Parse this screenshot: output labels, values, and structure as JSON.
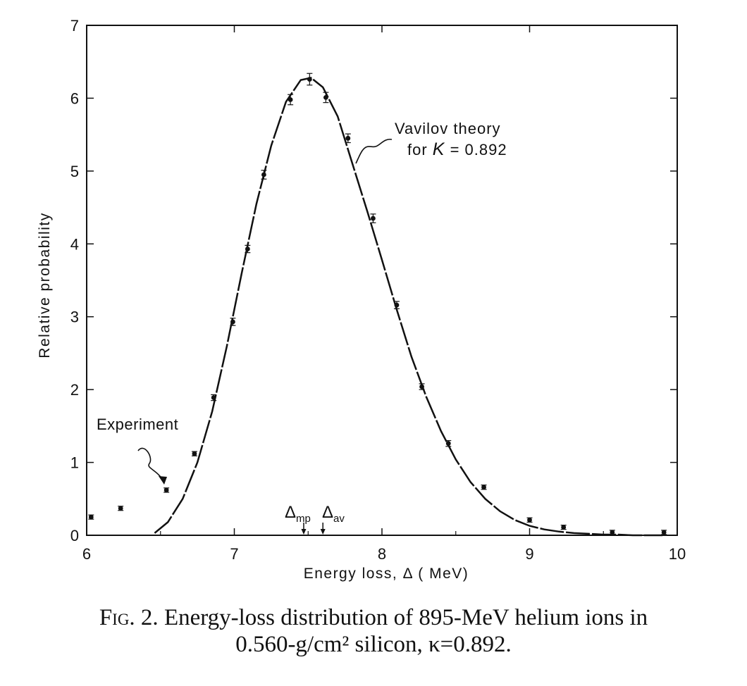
{
  "chart_data": {
    "type": "scatter",
    "title": "",
    "xlabel": "Energy loss, Δ ( MeV)",
    "ylabel": "Relative probability",
    "xlim": [
      6,
      10
    ],
    "ylim": [
      0,
      7
    ],
    "x_ticks": [
      "6",
      "7",
      "8",
      "9",
      "10"
    ],
    "y_ticks": [
      "0",
      "1",
      "2",
      "3",
      "4",
      "5",
      "6",
      "7"
    ],
    "series": [
      {
        "name": "Experiment",
        "kind": "points_with_error_bars",
        "x": [
          6.03,
          6.23,
          6.54,
          6.73,
          6.86,
          6.99,
          7.09,
          7.2,
          7.38,
          7.51,
          7.62,
          7.77,
          7.94,
          8.1,
          8.27,
          8.45,
          8.69,
          9.0,
          9.23,
          9.56,
          9.91
        ],
        "y": [
          0.25,
          0.37,
          0.62,
          1.12,
          1.89,
          2.93,
          3.93,
          4.95,
          5.98,
          6.26,
          6.01,
          5.45,
          4.35,
          3.16,
          2.04,
          1.26,
          0.66,
          0.21,
          0.11,
          0.04,
          0.04
        ],
        "err": [
          0.02,
          0.02,
          0.03,
          0.03,
          0.04,
          0.05,
          0.05,
          0.06,
          0.07,
          0.08,
          0.07,
          0.06,
          0.06,
          0.05,
          0.04,
          0.04,
          0.03,
          0.03,
          0.02,
          0.02,
          0.02
        ]
      },
      {
        "name": "Vavilov theory for K = 0.892",
        "kind": "line",
        "x": [
          6.46,
          6.55,
          6.65,
          6.75,
          6.85,
          6.95,
          7.05,
          7.15,
          7.25,
          7.35,
          7.45,
          7.52,
          7.6,
          7.7,
          7.8,
          7.9,
          8.0,
          8.1,
          8.2,
          8.3,
          8.4,
          8.5,
          8.6,
          8.7,
          8.8,
          8.9,
          9.0,
          9.1,
          9.2,
          9.3,
          9.4,
          9.5,
          9.6,
          9.7,
          9.8,
          9.9
        ],
        "y": [
          0.03,
          0.18,
          0.5,
          1.0,
          1.7,
          2.6,
          3.6,
          4.55,
          5.35,
          5.95,
          6.25,
          6.28,
          6.15,
          5.75,
          5.1,
          4.45,
          3.78,
          3.1,
          2.45,
          1.9,
          1.43,
          1.04,
          0.73,
          0.5,
          0.33,
          0.21,
          0.13,
          0.08,
          0.05,
          0.03,
          0.02,
          0.01,
          0.01,
          0.0,
          0.0,
          0.0
        ]
      }
    ],
    "annotations": {
      "experiment_label": "Experiment",
      "theory_label_line1": "Vavilov theory",
      "theory_label_line2_prefix": "for ",
      "theory_label_line2_symbol": "K",
      "theory_label_line2_value": " = 0.892",
      "mp_symbol": "Δ",
      "mp_subscript": "mp",
      "mp_x": 7.47,
      "av_symbol": "Δ",
      "av_subscript": "av",
      "av_x": 7.6
    }
  },
  "caption": {
    "label": "Fig. 2.",
    "line1_rest": "Energy-loss distribution of 895-MeV helium ions in",
    "line2": "0.560-g/cm² silicon, κ=0.892."
  }
}
